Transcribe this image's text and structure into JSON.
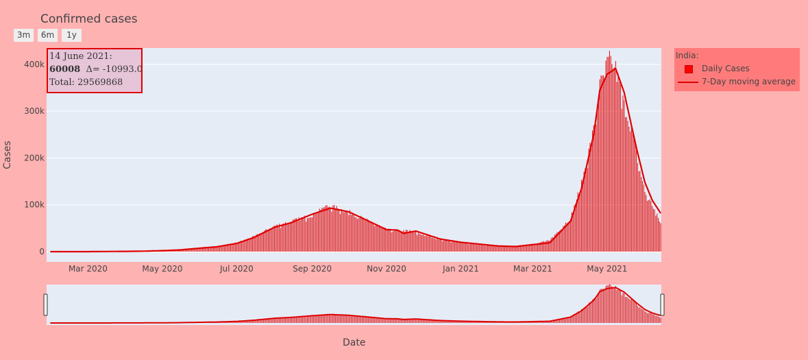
{
  "title": "Confirmed cases",
  "range_buttons": [
    "3m",
    "6m",
    "1y"
  ],
  "legend": {
    "title": "India:",
    "items": [
      {
        "label": "Daily Cases",
        "symbol": "bar",
        "color": "#ff0000"
      },
      {
        "label": "7-Day moving average",
        "symbol": "line",
        "color": "#e00000"
      }
    ]
  },
  "annotation": {
    "line1": "14 June 2021:",
    "value": "60008",
    "delta": "Δ= -10993.0",
    "total": "Total: 29569868"
  },
  "colors": {
    "paper_bg": "#ffb2b2",
    "plot_bg": "#e5ecf6",
    "bar": "#e00000",
    "line": "#e00000"
  },
  "chart_data": {
    "type": "bar",
    "title": "Confirmed cases",
    "xlabel": "Date",
    "ylabel": "Cases",
    "x_range": [
      "2020-01-30",
      "2021-06-14"
    ],
    "ylim": [
      -22000,
      435000
    ],
    "y_ticks": [
      0,
      100000,
      200000,
      300000,
      400000
    ],
    "y_tick_labels": [
      "0",
      "100k",
      "200k",
      "300k",
      "400k"
    ],
    "x_ticks": [
      "2020-03-01",
      "2020-05-01",
      "2020-07-01",
      "2020-09-01",
      "2020-11-01",
      "2021-01-01",
      "2021-03-01",
      "2021-05-01"
    ],
    "x_tick_labels": [
      "Mar 2020",
      "May 2020",
      "Jul 2020",
      "Sep 2020",
      "Nov 2020",
      "Jan 2021",
      "Mar 2021",
      "May 2021"
    ],
    "grid": true,
    "legend_position": "right",
    "range_slider": true,
    "series": [
      {
        "name": "Daily Cases",
        "kind": "bar",
        "points": [
          [
            "2020-01-30",
            1
          ],
          [
            "2020-03-01",
            20
          ],
          [
            "2020-04-01",
            800
          ],
          [
            "2020-04-15",
            1100
          ],
          [
            "2020-05-01",
            2400
          ],
          [
            "2020-05-15",
            3800
          ],
          [
            "2020-06-01",
            8000
          ],
          [
            "2020-06-15",
            11000
          ],
          [
            "2020-07-01",
            19000
          ],
          [
            "2020-07-15",
            32000
          ],
          [
            "2020-08-01",
            55000
          ],
          [
            "2020-08-15",
            65000
          ],
          [
            "2020-09-01",
            78000
          ],
          [
            "2020-09-10",
            96000
          ],
          [
            "2020-09-16",
            97000
          ],
          [
            "2020-10-01",
            85000
          ],
          [
            "2020-10-15",
            68000
          ],
          [
            "2020-11-01",
            47000
          ],
          [
            "2020-11-10",
            44000
          ],
          [
            "2020-11-20",
            45000
          ],
          [
            "2020-12-01",
            36000
          ],
          [
            "2020-12-15",
            26000
          ],
          [
            "2021-01-01",
            20000
          ],
          [
            "2021-01-15",
            15000
          ],
          [
            "2021-02-01",
            12000
          ],
          [
            "2021-02-15",
            11000
          ],
          [
            "2021-03-01",
            15000
          ],
          [
            "2021-03-15",
            25000
          ],
          [
            "2021-04-01",
            72000
          ],
          [
            "2021-04-10",
            145000
          ],
          [
            "2021-04-20",
            260000
          ],
          [
            "2021-04-25",
            352000
          ],
          [
            "2021-05-01",
            401000
          ],
          [
            "2021-05-06",
            414000
          ],
          [
            "2021-05-10",
            366000
          ],
          [
            "2021-05-15",
            311000
          ],
          [
            "2021-05-20",
            276000
          ],
          [
            "2021-05-25",
            208000
          ],
          [
            "2021-06-01",
            127000
          ],
          [
            "2021-06-07",
            100000
          ],
          [
            "2021-06-14",
            60008
          ]
        ]
      },
      {
        "name": "7-Day moving average",
        "kind": "line",
        "points": [
          [
            "2020-01-30",
            1
          ],
          [
            "2020-03-01",
            10
          ],
          [
            "2020-04-01",
            600
          ],
          [
            "2020-04-15",
            1000
          ],
          [
            "2020-05-01",
            2100
          ],
          [
            "2020-05-15",
            3600
          ],
          [
            "2020-06-01",
            7500
          ],
          [
            "2020-06-15",
            10500
          ],
          [
            "2020-07-01",
            17500
          ],
          [
            "2020-07-15",
            30000
          ],
          [
            "2020-08-01",
            52000
          ],
          [
            "2020-08-15",
            62000
          ],
          [
            "2020-09-01",
            80000
          ],
          [
            "2020-09-16",
            93000
          ],
          [
            "2020-10-01",
            85000
          ],
          [
            "2020-10-15",
            68000
          ],
          [
            "2020-11-01",
            47000
          ],
          [
            "2020-11-10",
            46000
          ],
          [
            "2020-11-15",
            39000
          ],
          [
            "2020-11-25",
            44000
          ],
          [
            "2020-12-15",
            27000
          ],
          [
            "2021-01-01",
            20000
          ],
          [
            "2021-02-01",
            12000
          ],
          [
            "2021-02-15",
            11000
          ],
          [
            "2021-03-01",
            15000
          ],
          [
            "2021-03-15",
            19000
          ],
          [
            "2021-04-01",
            65000
          ],
          [
            "2021-04-10",
            135000
          ],
          [
            "2021-04-20",
            250000
          ],
          [
            "2021-04-25",
            345000
          ],
          [
            "2021-05-01",
            379000
          ],
          [
            "2021-05-08",
            391000
          ],
          [
            "2021-05-15",
            340000
          ],
          [
            "2021-05-25",
            222000
          ],
          [
            "2021-06-01",
            148000
          ],
          [
            "2021-06-07",
            110000
          ],
          [
            "2021-06-14",
            82000
          ]
        ]
      }
    ]
  }
}
